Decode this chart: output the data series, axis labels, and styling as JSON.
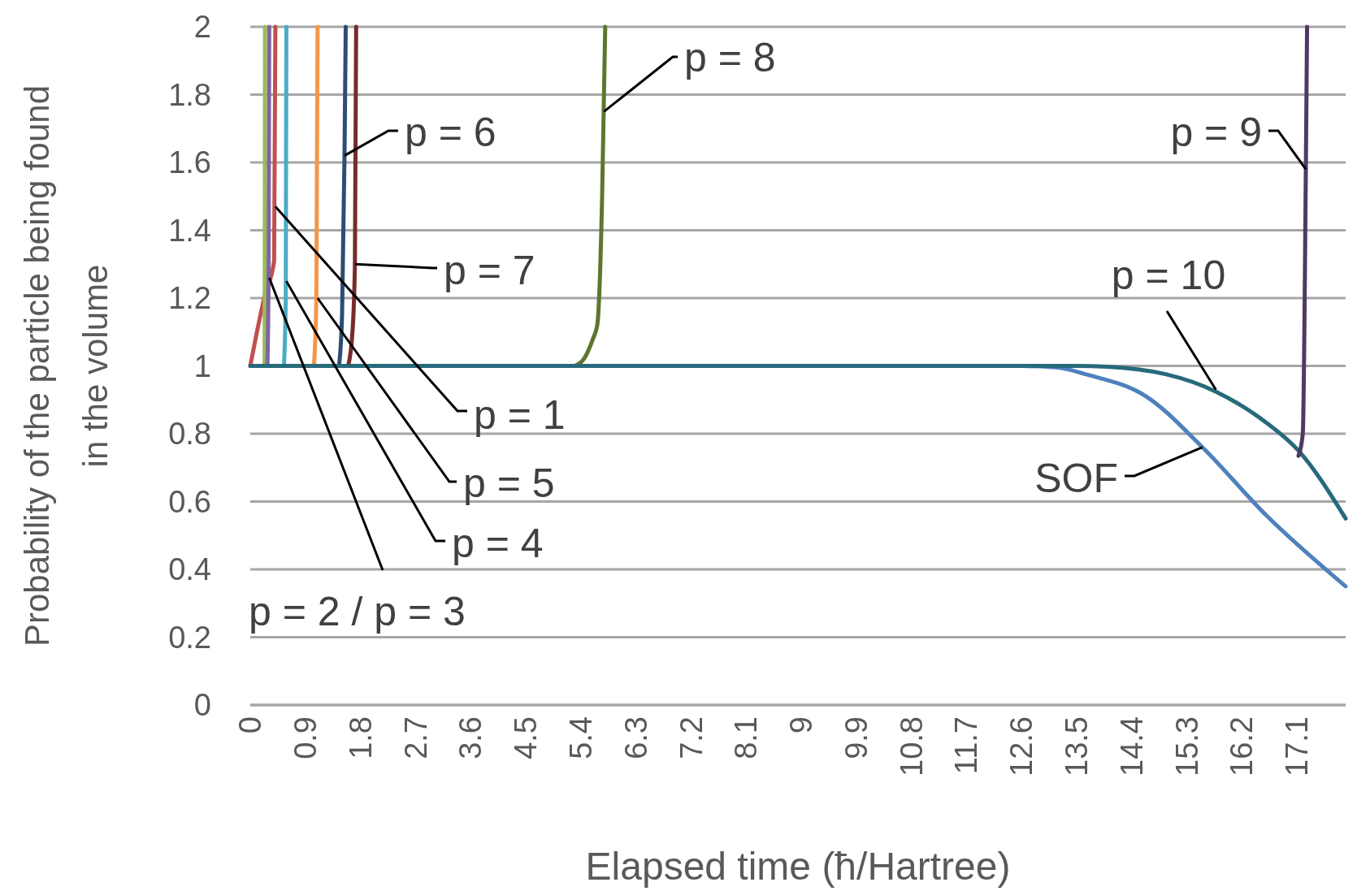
{
  "chart_data": {
    "type": "line",
    "xlabel": "Elapsed time (ħ/Hartree)",
    "ylabel": "Probability of the particle being found in the volume",
    "xlim": [
      0,
      17.9
    ],
    "xticks": [
      0,
      0.9,
      1.8,
      2.7,
      3.6,
      4.5,
      5.4,
      6.3,
      7.2,
      8.1,
      9,
      9.9,
      10.8,
      11.7,
      12.6,
      13.5,
      14.4,
      15.3,
      16.2,
      17.1
    ],
    "ylim": [
      0,
      2
    ],
    "yticks": [
      0,
      0.2,
      0.4,
      0.6,
      0.8,
      1,
      1.2,
      1.4,
      1.6,
      1.8,
      2
    ],
    "grid": "y",
    "marker": "none",
    "line_style": "solid",
    "series": [
      {
        "color": "#4f81bd",
        "x": [
          12.6,
          13.2,
          13.66,
          14.64,
          15.56,
          16.6,
          17.9
        ],
        "values": [
          1,
          0.995,
          0.975,
          0.91,
          0.76,
          0.56,
          0.35
        ]
      },
      {
        "color": "#c0504d",
        "x": [
          0,
          0.24,
          0.39,
          0.41
        ],
        "values": [
          1,
          1.21,
          1.31,
          2
        ]
      },
      {
        "color": "#9bbb59",
        "x": [
          0.235,
          0.24
        ],
        "values": [
          1,
          2
        ]
      },
      {
        "color": "#8064a2",
        "x": [
          0.28,
          0.3,
          0.31
        ],
        "values": [
          1,
          1.3,
          2
        ]
      },
      {
        "color": "#4bacc6",
        "x": [
          0.55,
          0.58,
          0.59
        ],
        "values": [
          1,
          1.2,
          2
        ]
      },
      {
        "color": "#f79646",
        "x": [
          1.04,
          1.08,
          1.1
        ],
        "values": [
          1,
          1.2,
          2
        ]
      },
      {
        "color": "#2c4d75",
        "x": [
          1.45,
          1.5,
          1.54,
          1.56
        ],
        "values": [
          1,
          1.15,
          1.62,
          2
        ]
      },
      {
        "color": "#772c2a",
        "x": [
          1.6,
          1.67,
          1.71,
          1.73
        ],
        "values": [
          1,
          1.1,
          1.3,
          2
        ]
      },
      {
        "color": "#5f7530",
        "x": [
          5.3,
          5.45,
          5.6,
          5.67,
          5.75,
          5.8
        ],
        "values": [
          1,
          1.02,
          1.08,
          1.12,
          1.5,
          2
        ]
      },
      {
        "color": "#276a7c",
        "x": [
          0,
          13.5,
          14.5,
          14.97,
          15.78,
          16.6,
          17.13,
          17.9
        ],
        "values": [
          1,
          1,
          0.99,
          0.975,
          0.924,
          0.833,
          0.75,
          0.55
        ]
      },
      {
        "color": "#4d3b62",
        "x": [
          17.13,
          17.2,
          17.25,
          17.27
        ],
        "values": [
          0.735,
          0.8,
          1.58,
          2
        ]
      }
    ],
    "annotations": [
      {
        "text": "p = 6",
        "x": 1.54,
        "y": 1.62
      },
      {
        "text": "p = 8",
        "x": 5.78,
        "y": 1.75
      },
      {
        "text": "p = 7",
        "x": 1.71,
        "y": 1.3
      },
      {
        "text": "p = 1",
        "x": 0.41,
        "y": 1.47
      },
      {
        "text": "p = 5",
        "x": 1.1,
        "y": 1.2
      },
      {
        "text": "p = 4",
        "x": 0.59,
        "y": 1.25
      },
      {
        "text": "p = 2 / p = 3",
        "x": 0.31,
        "y": 1.26
      },
      {
        "text": "p = 9",
        "x": 17.25,
        "y": 1.58
      },
      {
        "text": "p = 10",
        "x": 15.78,
        "y": 0.93
      },
      {
        "text": "SOF",
        "x": 15.56,
        "y": 0.76
      }
    ]
  }
}
